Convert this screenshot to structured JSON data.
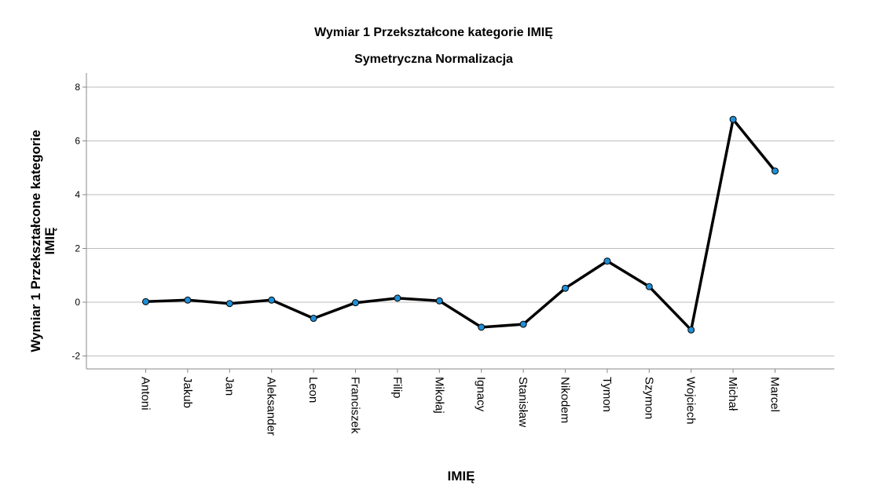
{
  "chart_data": {
    "type": "line",
    "title": "Wymiar 1 Przekształcone kategorie IMIĘ",
    "subtitle": "Symetryczna Normalizacja",
    "xlabel": "IMIĘ",
    "ylabel_line1": "Wymiar 1 Przekształcone kategorie",
    "ylabel_line2": "IMIĘ",
    "categories": [
      "Antoni",
      "Jakub",
      "Jan",
      "Aleksander",
      "Leon",
      "Franciszek",
      "Filip",
      "Mikołaj",
      "Ignacy",
      "Stanisław",
      "Nikodem",
      "Tymon",
      "Szymon",
      "Wojciech",
      "Michał",
      "Marcel"
    ],
    "series": [
      {
        "values": [
          0.02,
          0.08,
          -0.05,
          0.08,
          -0.6,
          -0.02,
          0.15,
          0.05,
          -0.93,
          -0.82,
          0.52,
          1.53,
          0.58,
          -1.03,
          6.8,
          4.88
        ],
        "line_color": "#000000",
        "marker_color": "#1f8fd6"
      }
    ],
    "yticks": [
      "-2",
      "0",
      "2",
      "4",
      "6",
      "8"
    ],
    "ylim": [
      -2.6,
      8.4
    ],
    "grid": "horizontal",
    "legend": "none"
  }
}
